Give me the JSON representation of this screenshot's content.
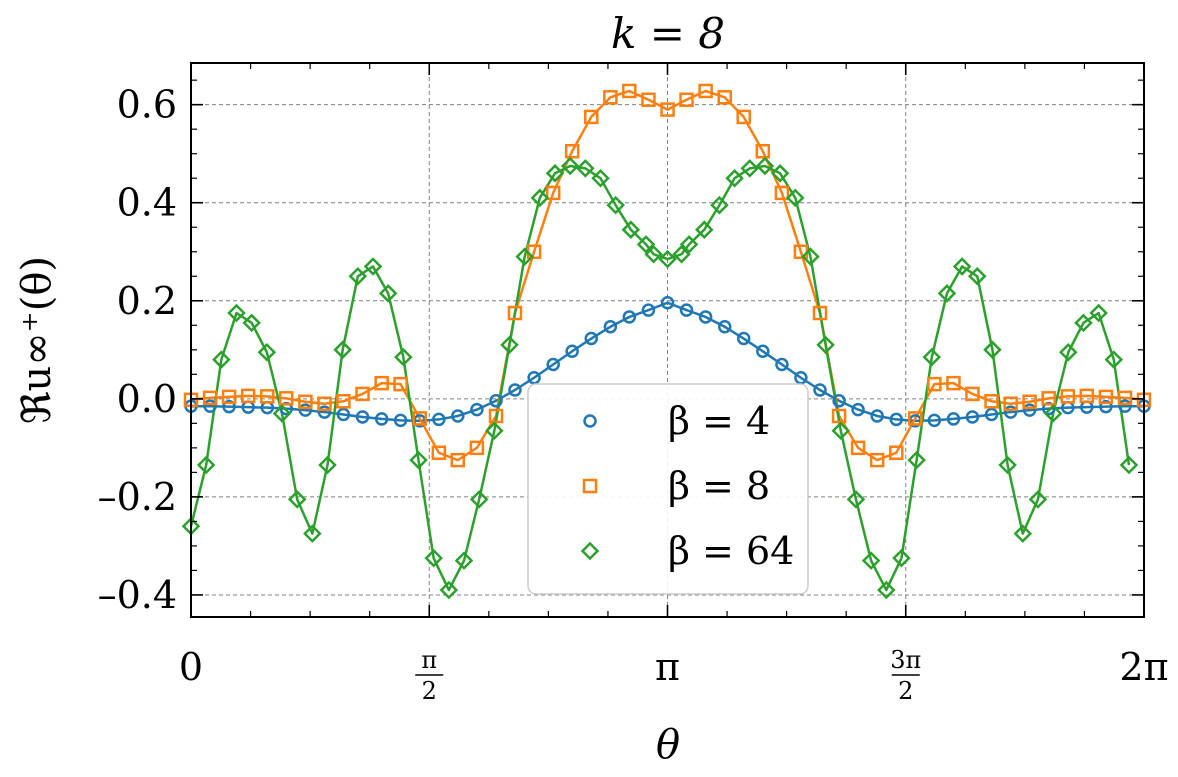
{
  "chart_data": {
    "type": "line",
    "title": "k = 8",
    "xlabel": "θ",
    "ylabel": "ℜu∞⁺(θ)",
    "xlim": [
      0,
      6.283185307
    ],
    "ylim": [
      -0.445,
      0.685
    ],
    "grid": true,
    "legend_position": "lower-center",
    "x_ticks": [
      {
        "value": 0,
        "label": "0"
      },
      {
        "value": 1.5707963,
        "label": "π/2",
        "num": "π",
        "den": "2"
      },
      {
        "value": 3.1415927,
        "label": "π"
      },
      {
        "value": 4.712389,
        "label": "3π/2",
        "num": "3π",
        "den": "2"
      },
      {
        "value": 6.2831853,
        "label": "2π"
      }
    ],
    "y_ticks": [
      {
        "value": -0.4,
        "label": "–0.4"
      },
      {
        "value": -0.2,
        "label": "–0.2"
      },
      {
        "value": 0.0,
        "label": "0.0"
      },
      {
        "value": 0.2,
        "label": "0.2"
      },
      {
        "value": 0.4,
        "label": "0.4"
      },
      {
        "value": 0.6,
        "label": "0.6"
      }
    ],
    "series": [
      {
        "name": "β = 4",
        "color": "#1f77b4",
        "marker": "circle",
        "points": [
          [
            0.0,
            -0.015
          ],
          [
            0.126,
            -0.015
          ],
          [
            0.251,
            -0.016
          ],
          [
            0.377,
            -0.017
          ],
          [
            0.503,
            -0.018
          ],
          [
            0.628,
            -0.02
          ],
          [
            0.754,
            -0.023
          ],
          [
            0.88,
            -0.027
          ],
          [
            1.005,
            -0.032
          ],
          [
            1.131,
            -0.037
          ],
          [
            1.257,
            -0.041
          ],
          [
            1.382,
            -0.044
          ],
          [
            1.508,
            -0.045
          ],
          [
            1.634,
            -0.042
          ],
          [
            1.759,
            -0.035
          ],
          [
            1.885,
            -0.022
          ],
          [
            2.011,
            -0.004
          ],
          [
            2.136,
            0.018
          ],
          [
            2.262,
            0.043
          ],
          [
            2.388,
            0.07
          ],
          [
            2.513,
            0.097
          ],
          [
            2.639,
            0.123
          ],
          [
            2.765,
            0.147
          ],
          [
            2.89,
            0.167
          ],
          [
            3.016,
            0.181
          ],
          [
            3.142,
            0.196
          ],
          [
            3.267,
            0.181
          ],
          [
            3.393,
            0.167
          ],
          [
            3.519,
            0.147
          ],
          [
            3.644,
            0.123
          ],
          [
            3.77,
            0.097
          ],
          [
            3.896,
            0.07
          ],
          [
            4.021,
            0.043
          ],
          [
            4.147,
            0.018
          ],
          [
            4.273,
            -0.004
          ],
          [
            4.398,
            -0.022
          ],
          [
            4.524,
            -0.035
          ],
          [
            4.65,
            -0.042
          ],
          [
            4.775,
            -0.045
          ],
          [
            4.901,
            -0.044
          ],
          [
            5.027,
            -0.041
          ],
          [
            5.152,
            -0.037
          ],
          [
            5.278,
            -0.032
          ],
          [
            5.404,
            -0.027
          ],
          [
            5.529,
            -0.023
          ],
          [
            5.655,
            -0.02
          ],
          [
            5.781,
            -0.018
          ],
          [
            5.906,
            -0.017
          ],
          [
            6.032,
            -0.016
          ],
          [
            6.158,
            -0.015
          ],
          [
            6.283,
            -0.015
          ]
        ]
      },
      {
        "name": "β = 8",
        "color": "#ff7f0e",
        "marker": "square",
        "points": [
          [
            0.0,
            -0.002
          ],
          [
            0.126,
            0.002
          ],
          [
            0.251,
            0.004
          ],
          [
            0.377,
            0.006
          ],
          [
            0.503,
            0.005
          ],
          [
            0.628,
            0.001
          ],
          [
            0.754,
            -0.006
          ],
          [
            0.88,
            -0.01
          ],
          [
            1.005,
            -0.005
          ],
          [
            1.131,
            0.01
          ],
          [
            1.257,
            0.032
          ],
          [
            1.382,
            0.03
          ],
          [
            1.508,
            -0.04
          ],
          [
            1.634,
            -0.11
          ],
          [
            1.759,
            -0.125
          ],
          [
            1.885,
            -0.1
          ],
          [
            2.011,
            -0.035
          ],
          [
            2.136,
            0.175
          ],
          [
            2.262,
            0.3
          ],
          [
            2.388,
            0.42
          ],
          [
            2.513,
            0.505
          ],
          [
            2.639,
            0.575
          ],
          [
            2.765,
            0.615
          ],
          [
            2.89,
            0.628
          ],
          [
            3.016,
            0.61
          ],
          [
            3.142,
            0.59
          ],
          [
            3.267,
            0.61
          ],
          [
            3.393,
            0.628
          ],
          [
            3.519,
            0.615
          ],
          [
            3.644,
            0.575
          ],
          [
            3.77,
            0.505
          ],
          [
            3.896,
            0.42
          ],
          [
            4.021,
            0.3
          ],
          [
            4.147,
            0.175
          ],
          [
            4.273,
            -0.035
          ],
          [
            4.398,
            -0.1
          ],
          [
            4.524,
            -0.125
          ],
          [
            4.65,
            -0.11
          ],
          [
            4.775,
            -0.04
          ],
          [
            4.901,
            0.03
          ],
          [
            5.027,
            0.032
          ],
          [
            5.152,
            0.01
          ],
          [
            5.278,
            -0.005
          ],
          [
            5.404,
            -0.01
          ],
          [
            5.529,
            -0.006
          ],
          [
            5.655,
            0.001
          ],
          [
            5.781,
            0.005
          ],
          [
            5.906,
            0.006
          ],
          [
            6.032,
            0.004
          ],
          [
            6.158,
            0.002
          ],
          [
            6.283,
            -0.002
          ]
        ]
      },
      {
        "name": "β = 64",
        "color": "#2ca02c",
        "marker": "diamond",
        "points": [
          [
            0.0,
            -0.26
          ],
          [
            0.1,
            -0.135
          ],
          [
            0.2,
            0.08
          ],
          [
            0.3,
            0.175
          ],
          [
            0.4,
            0.155
          ],
          [
            0.5,
            0.095
          ],
          [
            0.6,
            -0.03
          ],
          [
            0.7,
            -0.205
          ],
          [
            0.8,
            -0.275
          ],
          [
            0.9,
            -0.135
          ],
          [
            1.0,
            0.1
          ],
          [
            1.1,
            0.25
          ],
          [
            1.2,
            0.27
          ],
          [
            1.3,
            0.215
          ],
          [
            1.4,
            0.085
          ],
          [
            1.5,
            -0.125
          ],
          [
            1.6,
            -0.325
          ],
          [
            1.7,
            -0.39
          ],
          [
            1.8,
            -0.33
          ],
          [
            1.9,
            -0.205
          ],
          [
            2.0,
            -0.065
          ],
          [
            2.1,
            0.11
          ],
          [
            2.2,
            0.29
          ],
          [
            2.3,
            0.41
          ],
          [
            2.4,
            0.46
          ],
          [
            2.5,
            0.475
          ],
          [
            2.6,
            0.47
          ],
          [
            2.7,
            0.45
          ],
          [
            2.8,
            0.395
          ],
          [
            2.9,
            0.345
          ],
          [
            3.0,
            0.315
          ],
          [
            3.05,
            0.295
          ],
          [
            3.142,
            0.285
          ],
          [
            3.234,
            0.295
          ],
          [
            3.284,
            0.315
          ],
          [
            3.384,
            0.345
          ],
          [
            3.484,
            0.395
          ],
          [
            3.584,
            0.45
          ],
          [
            3.684,
            0.47
          ],
          [
            3.784,
            0.475
          ],
          [
            3.884,
            0.46
          ],
          [
            3.984,
            0.41
          ],
          [
            4.084,
            0.29
          ],
          [
            4.184,
            0.11
          ],
          [
            4.284,
            -0.065
          ],
          [
            4.384,
            -0.205
          ],
          [
            4.484,
            -0.33
          ],
          [
            4.584,
            -0.39
          ],
          [
            4.684,
            -0.325
          ],
          [
            4.784,
            -0.125
          ],
          [
            4.884,
            0.085
          ],
          [
            4.984,
            0.215
          ],
          [
            5.084,
            0.27
          ],
          [
            5.184,
            0.25
          ],
          [
            5.284,
            0.1
          ],
          [
            5.384,
            -0.135
          ],
          [
            5.484,
            -0.275
          ],
          [
            5.584,
            -0.205
          ],
          [
            5.684,
            -0.03
          ],
          [
            5.784,
            0.095
          ],
          [
            5.884,
            0.155
          ],
          [
            5.984,
            0.175
          ],
          [
            6.084,
            0.08
          ],
          [
            6.184,
            -0.135
          ]
        ]
      }
    ]
  }
}
